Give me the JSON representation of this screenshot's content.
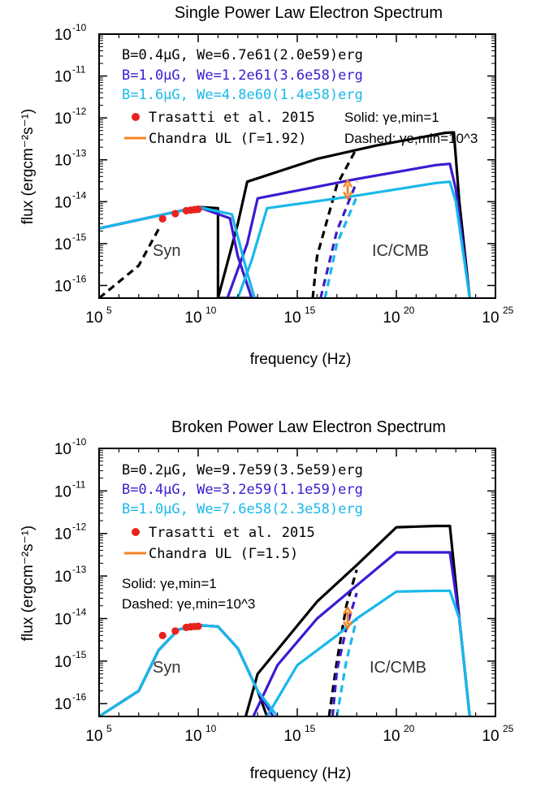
{
  "colors": {
    "black": "#000000",
    "b1": "#3d1ad0",
    "b2": "#18b8ea",
    "data": "#e8231e",
    "ul": "#f58220"
  },
  "chart_data": [
    {
      "type": "line",
      "title": "Single Power Law Electron Spectrum",
      "xlabel": "frequency (Hz)",
      "ylabel": "flux (ergcm⁻²s⁻¹)",
      "xscale": "log",
      "yscale": "log",
      "xlim": [
        100000,
        1e+25
      ],
      "ylim": [
        5e-17,
        1e-10
      ],
      "x_tick_labels": [
        "10^5",
        "10^10",
        "10^15",
        "10^20",
        "10^25"
      ],
      "y_tick_labels": [
        "10^-16",
        "10^-15",
        "10^-14",
        "10^-13",
        "10^-12",
        "10^-11",
        "10^-10"
      ],
      "legend": {
        "position": "top-left",
        "entries": [
          {
            "text": "B=0.4μG, We=6.7e61(2.0e59)erg",
            "color": "black"
          },
          {
            "text": "B=1.0μG, We=1.2e61(3.6e58)erg",
            "color": "b1"
          },
          {
            "text": "B=1.6μG, We=4.8e60(1.4e58)erg",
            "color": "b2"
          },
          {
            "text": "Trasatti et al. 2015",
            "color": "data",
            "marker": "circle"
          },
          {
            "text": "Chandra UL (Γ=1.92)",
            "color": "ul",
            "marker": "line"
          }
        ],
        "style_note": {
          "solid": "Solid: γe,min=1",
          "dashed": "Dashed: γe,min=10^3"
        }
      },
      "annotations": [
        "Syn",
        "IC/CMB"
      ],
      "points": [
        {
          "x": 160000000.0,
          "y": 3.9e-15
        },
        {
          "x": 700000000.0,
          "y": 5.2e-15
        },
        {
          "x": 2500000000.0,
          "y": 6.1e-15
        },
        {
          "x": 4200000000.0,
          "y": 6.3e-15
        },
        {
          "x": 6500000000.0,
          "y": 6.5e-15
        },
        {
          "x": 10000000000.0,
          "y": 6.6e-15
        }
      ],
      "chandra_ul": {
        "x": 3.5e+17,
        "y": [
          1.2e-14,
          3.2e-14
        ]
      },
      "series": [
        {
          "color": "black",
          "style": "solid",
          "x": [
            100000,
            10000000000.0,
            100000000000.0,
            100000000000.0,
            1000000000000.0,
            2000000000000.0,
            10000000000000.0
          ],
          "y": [
            2.3e-15,
            7.5e-15,
            7e-15,
            5e-17,
            5e-17,
            5e-17,
            5e-17
          ]
        },
        {
          "color": "black",
          "style": "solid",
          "x": [
            100000000000.0,
            1000000000000.0,
            3000000000000.0,
            1e+16,
            1e+19,
            1e+22,
            3e+22,
            8e+22,
            1.5e+23,
            5e+23
          ],
          "y": [
            5e-17,
            3e-15,
            3e-14,
            1.05e-13,
            2.2e-13,
            4e-13,
            4.4e-13,
            4.5e-13,
            1e-14,
            5e-17
          ]
        },
        {
          "color": "black",
          "style": "dashed",
          "x": [
            100000,
            10000000.0,
            100000000.0
          ],
          "y": [
            5e-17,
            3e-16,
            2.2e-15
          ]
        },
        {
          "color": "black",
          "style": "dashed",
          "x": [
            6000000000000000.0,
            1e+16,
            1e+17,
            1e+18
          ],
          "y": [
            5e-17,
            5e-16,
            2.5e-14,
            1.9e-13
          ]
        },
        {
          "color": "b1",
          "style": "solid",
          "x": [
            100000,
            10000000000.0,
            400000000000.0,
            1000000000000.0,
            5000000000000.0,
            10000000000000.0
          ],
          "y": [
            2.3e-15,
            7.5e-15,
            4e-15,
            5e-16,
            5e-17,
            5e-17
          ]
        },
        {
          "color": "b1",
          "style": "solid",
          "x": [
            300000000000.0,
            3000000000000.0,
            10000000000000.0,
            1e+18,
            1e+22,
            5e+22,
            1e+23,
            5e+23
          ],
          "y": [
            5e-17,
            1e-15,
            1.2e-14,
            3.5e-14,
            7.5e-14,
            8e-14,
            2e-14,
            5e-17
          ]
        },
        {
          "color": "b1",
          "style": "dashed",
          "x": [
            1.5e+16,
            1e+17,
            1e+18
          ],
          "y": [
            5e-17,
            2e-15,
            3e-14
          ]
        },
        {
          "color": "b2",
          "style": "solid",
          "x": [
            100000,
            10000000000.0,
            500000000000.0,
            3000000000000.0,
            7000000000000.0,
            10000000000000.0
          ],
          "y": [
            2.3e-15,
            7.5e-15,
            5e-15,
            2e-16,
            5e-17,
            5e-17
          ]
        },
        {
          "color": "b2",
          "style": "solid",
          "x": [
            1000000000000.0,
            5000000000000.0,
            30000000000000.0,
            1e+18,
            1e+22,
            5e+22,
            1e+23,
            5e+23
          ],
          "y": [
            5e-17,
            4e-16,
            7e-15,
            1.4e-14,
            2.8e-14,
            3e-14,
            1e-14,
            5e-17
          ]
        },
        {
          "color": "b2",
          "style": "dashed",
          "x": [
            2.5e+16,
            1e+17,
            1e+18
          ],
          "y": [
            5e-17,
            1e-15,
            1.3e-14
          ]
        }
      ]
    },
    {
      "type": "line",
      "title": "Broken Power Law Electron Spectrum",
      "xlabel": "frequency (Hz)",
      "ylabel": "flux (ergcm⁻²s⁻¹)",
      "xscale": "log",
      "yscale": "log",
      "xlim": [
        100000,
        1e+25
      ],
      "ylim": [
        5e-17,
        1e-10
      ],
      "x_tick_labels": [
        "10^5",
        "10^10",
        "10^15",
        "10^20",
        "10^25"
      ],
      "y_tick_labels": [
        "10^-16",
        "10^-15",
        "10^-14",
        "10^-13",
        "10^-12",
        "10^-11",
        "10^-10"
      ],
      "legend": {
        "position": "top-left",
        "entries": [
          {
            "text": "B=0.2μG, We=9.7e59(3.5e59)erg",
            "color": "black"
          },
          {
            "text": "B=0.4μG, We=3.2e59(1.1e59)erg",
            "color": "b1"
          },
          {
            "text": "B=1.0μG, We=7.6e58(2.3e58)erg",
            "color": "b2"
          },
          {
            "text": "Trasatti et al. 2015",
            "color": "data",
            "marker": "circle"
          },
          {
            "text": "Chandra UL (Γ=1.5)",
            "color": "ul",
            "marker": "line"
          }
        ],
        "style_note": {
          "solid": "Solid: γe,min=1",
          "dashed": "Dashed: γe,min=10^3"
        }
      },
      "annotations": [
        "Syn",
        "IC/CMB"
      ],
      "points": [
        {
          "x": 160000000.0,
          "y": 4e-15
        },
        {
          "x": 700000000.0,
          "y": 5.1e-15
        },
        {
          "x": 2500000000.0,
          "y": 6.2e-15
        },
        {
          "x": 4200000000.0,
          "y": 6.4e-15
        },
        {
          "x": 6500000000.0,
          "y": 6.5e-15
        },
        {
          "x": 10000000000.0,
          "y": 6.6e-15
        }
      ],
      "chandra_ul": {
        "x": 3.5e+17,
        "y": [
          6e-15,
          1.8e-14
        ]
      },
      "series": [
        {
          "color": "black",
          "style": "solid",
          "x": [
            100000,
            10000000.0,
            100000000.0,
            1000000000.0,
            10000000000.0,
            100000000000.0,
            1000000000000.0,
            10000000000000.0,
            30000000000000.0
          ],
          "y": [
            5e-17,
            2e-16,
            1.8e-15,
            5.5e-15,
            7e-15,
            6.5e-15,
            2e-15,
            2e-16,
            5e-17
          ]
        },
        {
          "color": "black",
          "style": "solid",
          "x": [
            2500000000000.0,
            10000000000000.0,
            1e+16,
            1e+18,
            1e+20,
            1e+22,
            5e+22,
            1.5e+23,
            5e+23
          ],
          "y": [
            5e-17,
            5e-16,
            2.5e-14,
            1.8e-13,
            1.4e-12,
            1.5e-12,
            1.5e-12,
            1e-14,
            5e-17
          ]
        },
        {
          "color": "black",
          "style": "dashed",
          "x": [
            4e+16,
            1e+17,
            3e+17,
            1e+18
          ],
          "y": [
            5e-17,
            1e-15,
            2e-14,
            1.4e-13
          ]
        },
        {
          "color": "b1",
          "style": "solid",
          "x": [
            100000,
            10000000.0,
            100000000.0,
            1000000000.0,
            10000000000.0,
            100000000000.0,
            1000000000000.0,
            10000000000000.0,
            60000000000000.0
          ],
          "y": [
            5e-17,
            2e-16,
            1.8e-15,
            5.5e-15,
            7e-15,
            6.5e-15,
            2e-15,
            2e-16,
            5e-17
          ]
        },
        {
          "color": "b1",
          "style": "solid",
          "x": [
            6000000000000.0,
            100000000000000.0,
            1e+16,
            1e+18,
            1e+20,
            1e+22,
            5e+22,
            1.5e+23,
            5e+23
          ],
          "y": [
            5e-17,
            8e-16,
            1e-14,
            6e-14,
            3.6e-13,
            3.6e-13,
            3.6e-13,
            1e-14,
            5e-17
          ]
        },
        {
          "color": "b1",
          "style": "dashed",
          "x": [
            6e+16,
            1e+17,
            3e+17,
            1e+18
          ],
          "y": [
            5e-17,
            6e-16,
            6e-15,
            4e-14
          ]
        },
        {
          "color": "b2",
          "style": "solid",
          "x": [
            100000,
            10000000.0,
            100000000.0,
            1000000000.0,
            10000000000.0,
            100000000000.0,
            1000000000000.0,
            10000000000000.0,
            100000000000000.0
          ],
          "y": [
            5e-17,
            2e-16,
            1.8e-15,
            5.5e-15,
            7e-15,
            6.5e-15,
            2e-15,
            2e-16,
            5e-17
          ]
        },
        {
          "color": "b2",
          "style": "solid",
          "x": [
            30000000000000.0,
            1000000000000000.0,
            1e+17,
            1e+18,
            1e+20,
            1e+22,
            5e+22,
            1.5e+23,
            5e+23
          ],
          "y": [
            5e-17,
            8e-16,
            4e-15,
            1e-14,
            4.3e-14,
            4.5e-14,
            4.5e-14,
            1e-14,
            5e-17
          ]
        },
        {
          "color": "b2",
          "style": "dashed",
          "x": [
            1e+17,
            3e+17,
            1e+18
          ],
          "y": [
            5e-17,
            1e-15,
            1e-14
          ]
        }
      ]
    }
  ]
}
